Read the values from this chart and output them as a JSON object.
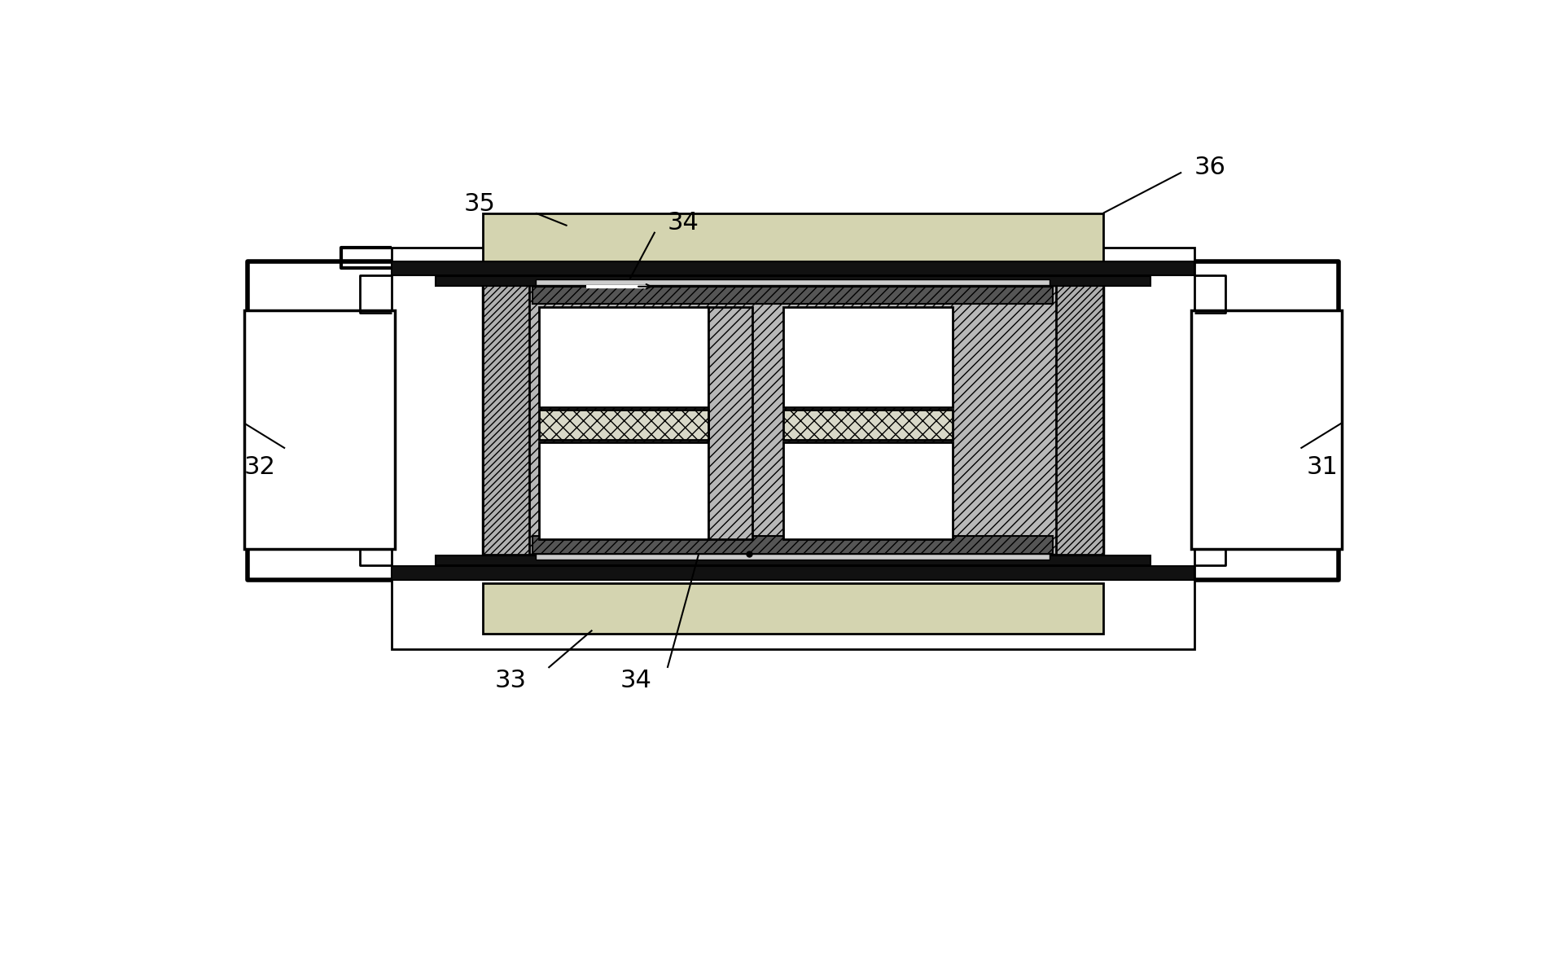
{
  "bg": "#ffffff",
  "lw_heavy": 6,
  "lw_med": 3,
  "lw_thin": 2,
  "fs": 22,
  "gray_wave": "#c8c8a0",
  "gray_diag": "#b0b0b0",
  "gray_cross": "#d0d0d0",
  "black": "#111111",
  "white": "#ffffff",
  "mid_gray": "#909090"
}
